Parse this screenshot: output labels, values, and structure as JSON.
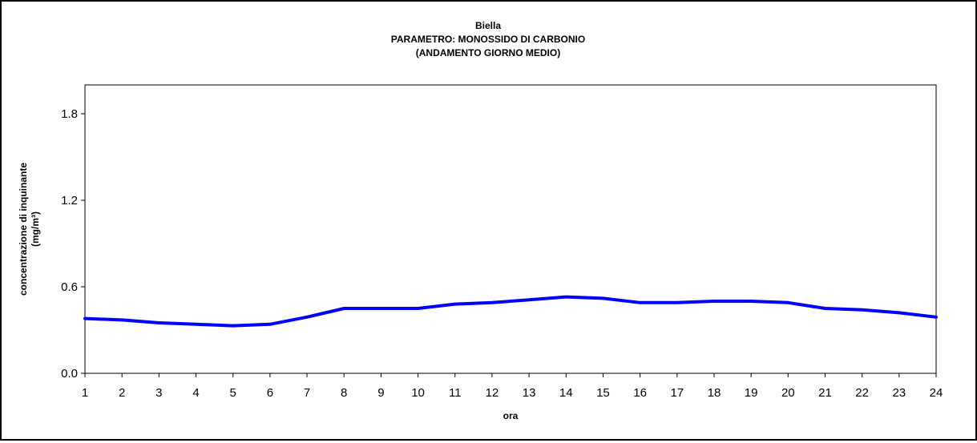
{
  "chart_data": {
    "type": "line",
    "title": [
      "Biella",
      "PARAMETRO: MONOSSIDO DI CARBONIO",
      "(ANDAMENTO GIORNO MEDIO)"
    ],
    "xlabel": "ora",
    "ylabel": [
      "concentrazione di inquinante",
      "(mg/m³)"
    ],
    "x": [
      1,
      2,
      3,
      4,
      5,
      6,
      7,
      8,
      9,
      10,
      11,
      12,
      13,
      14,
      15,
      16,
      17,
      18,
      19,
      20,
      21,
      22,
      23,
      24
    ],
    "x_ticks": [
      "1",
      "2",
      "3",
      "4",
      "5",
      "6",
      "7",
      "8",
      "9",
      "10",
      "11",
      "12",
      "13",
      "14",
      "15",
      "16",
      "17",
      "18",
      "19",
      "20",
      "21",
      "22",
      "23",
      "24"
    ],
    "series": [
      {
        "values": [
          0.38,
          0.37,
          0.35,
          0.34,
          0.33,
          0.34,
          0.39,
          0.45,
          0.45,
          0.45,
          0.48,
          0.49,
          0.51,
          0.53,
          0.52,
          0.49,
          0.49,
          0.5,
          0.5,
          0.49,
          0.45,
          0.44,
          0.42,
          0.39
        ],
        "color": "#0000ff"
      }
    ],
    "y_ticks": [
      "0.0",
      "0.6",
      "1.2",
      "1.8"
    ],
    "y_tick_values": [
      0.0,
      0.6,
      1.2,
      1.8
    ],
    "ylim": [
      0,
      2.0
    ],
    "xlim": [
      1,
      24
    ],
    "grid": false,
    "legend": "none",
    "colors": {
      "line": "#0000ff",
      "axis": "#000000",
      "background": "#ffffff"
    }
  }
}
